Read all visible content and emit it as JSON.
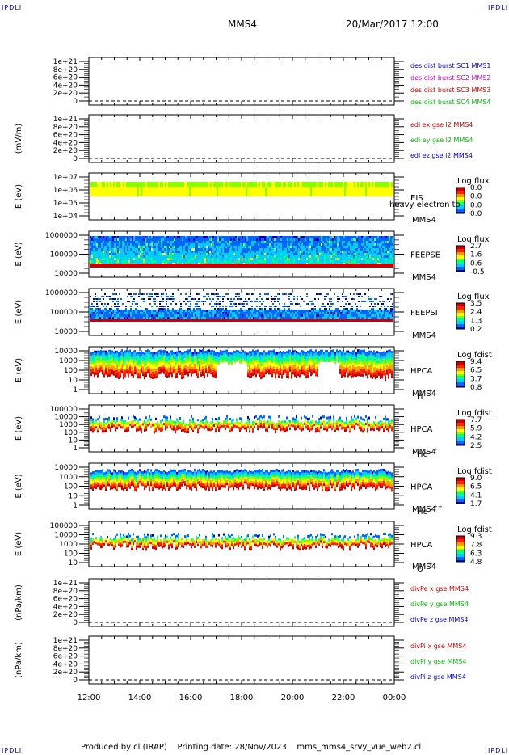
{
  "corner_label": "IPDLI",
  "header": {
    "mission": "MMS4",
    "datetime": "20/Mar/2017 12:00"
  },
  "footer": {
    "produced_by": "Produced by cl (IRAP)",
    "printing_date": "Printing date: 28/Nov/2023",
    "script_name": "mms_mms4_srvy_vue_web2.cl"
  },
  "time_axis": {
    "ticks": [
      "12:00",
      "14:00",
      "16:00",
      "18:00",
      "20:00",
      "22:00",
      "00:00"
    ]
  },
  "panels": [
    {
      "id": "dist",
      "ylabel": "",
      "ytick_labels": [
        "1e+21",
        "8e+20",
        "6e+20",
        "4e+20",
        "2e+20",
        "0"
      ],
      "legend": [
        {
          "text": "des dist burst SC1 MMS1",
          "color": "#0000cc"
        },
        {
          "text": "des dist burst SC2 MMS2",
          "color": "#cc00cc"
        },
        {
          "text": "des dist burst SC3 MMS3",
          "color": "#cc0000"
        },
        {
          "text": "des dist burst SC4 MMS4",
          "color": "#00bb00"
        }
      ]
    },
    {
      "id": "edi",
      "ylabel": "(mV/m)",
      "ytick_labels": [
        "1e+21",
        "8e+20",
        "6e+20",
        "4e+20",
        "2e+20",
        "0"
      ],
      "legend": [
        {
          "text": "edi ex gse l2 MMS4",
          "color": "#cc0000"
        },
        {
          "text": "edi ey gse l2 MMS4",
          "color": "#00bb00"
        },
        {
          "text": "edi ez gse l2 MMS4",
          "color": "#0000cc"
        }
      ]
    },
    {
      "id": "eis",
      "ylabel": "E (eV)",
      "ytick_labels": [
        "1e+07",
        "1e+06",
        "1e+05",
        "1e+04"
      ],
      "name1": "EIS",
      "name2": "MMS4",
      "overlay_text": "heavy electron to",
      "colorbar": {
        "title": "Log flux",
        "labels": [
          "0.0",
          "0.0",
          "0.0",
          "0.0"
        ]
      }
    },
    {
      "id": "feepse",
      "ylabel": "E (eV)",
      "ytick_labels": [
        "1000000",
        "100000",
        "10000"
      ],
      "name1": "FEEPSE",
      "name2": "MMS4",
      "colorbar": {
        "title": "Log flux",
        "labels": [
          "2.7",
          "1.6",
          "0.6",
          "-0.5"
        ]
      }
    },
    {
      "id": "feepsi",
      "ylabel": "E (eV)",
      "ytick_labels": [
        "1000000",
        "100000",
        "10000"
      ],
      "name1": "FEEPSI",
      "name2": "MMS4",
      "colorbar": {
        "title": "Log flux",
        "labels": [
          "3.5",
          "2.4",
          "1.3",
          "0.2"
        ]
      }
    },
    {
      "id": "hpca_h",
      "ylabel": "E (eV)",
      "ytick_labels": [
        "10000",
        "1000",
        "100",
        "10",
        "1"
      ],
      "name1": "HPCA",
      "name2": "MMS4",
      "species": "H",
      "species_sup": "+",
      "colorbar": {
        "title": "Log fdist",
        "labels": [
          "9.4",
          "6.5",
          "3.7",
          "0.8"
        ]
      }
    },
    {
      "id": "hpca_he",
      "ylabel": "E (eV)",
      "ytick_labels": [
        "100000",
        "10000",
        "1000",
        "100",
        "10",
        "1"
      ],
      "name1": "HPCA",
      "name2": "MMS4",
      "species": "He",
      "species_sup": "+",
      "colorbar": {
        "title": "Log fdist",
        "labels": [
          "7.7",
          "5.9",
          "4.2",
          "2.5"
        ]
      }
    },
    {
      "id": "hpca_hepp",
      "ylabel": "E (eV)",
      "ytick_labels": [
        "10000",
        "1000",
        "100",
        "10",
        "1"
      ],
      "name1": "HPCA",
      "name2": "MMS4",
      "species": "He",
      "species_sup": "++",
      "colorbar": {
        "title": "Log fdist",
        "labels": [
          "9.0",
          "6.5",
          "4.1",
          "1.7"
        ]
      }
    },
    {
      "id": "hpca_o",
      "ylabel": "E (eV)",
      "ytick_labels": [
        "100000",
        "10000",
        "1000",
        "100",
        "10"
      ],
      "name1": "HPCA",
      "name2": "MMS4",
      "species": "O",
      "species_sup": "+",
      "colorbar": {
        "title": "Log fdist",
        "labels": [
          "9.3",
          "7.8",
          "6.3",
          "4.8"
        ]
      }
    },
    {
      "id": "divpe",
      "ylabel": "(nPa/km)",
      "ytick_labels": [
        "1e+21",
        "8e+20",
        "6e+20",
        "4e+20",
        "2e+20",
        "0"
      ],
      "legend": [
        {
          "text": "divPe x gse MMS4",
          "color": "#cc0000"
        },
        {
          "text": "divPe y gse MMS4",
          "color": "#00bb00"
        },
        {
          "text": "divPe z gse MMS4",
          "color": "#0000cc"
        }
      ]
    },
    {
      "id": "divpi",
      "ylabel": "(nPa/km)",
      "ytick_labels": [
        "1e+21",
        "8e+20",
        "6e+20",
        "4e+20",
        "2e+20",
        "0"
      ],
      "legend": [
        {
          "text": "divPi x gse MMS4",
          "color": "#cc0000"
        },
        {
          "text": "divPi y gse MMS4",
          "color": "#00bb00"
        },
        {
          "text": "divPi z gse MMS4",
          "color": "#0000cc"
        }
      ]
    }
  ],
  "chart_data": {
    "type": "heatmap",
    "x": [
      "12:00",
      "14:00",
      "16:00",
      "18:00",
      "20:00",
      "22:00",
      "00:00"
    ],
    "colorscale": [
      "#0000aa",
      "#0066ff",
      "#00ccff",
      "#00ff88",
      "#88ff00",
      "#ffff00",
      "#ff9900",
      "#ff2200",
      "#cc0000"
    ],
    "line_panels_ylim": [
      0,
      1e+21
    ],
    "spectrogram_ranges_eV": {
      "eis": [
        10000.0,
        10000000.0
      ],
      "feepse": [
        10000.0,
        1000000.0
      ],
      "feepsi": [
        10000.0,
        1000000.0
      ],
      "hpca_h": [
        1,
        10000.0
      ],
      "hpca_he": [
        1,
        100000.0
      ],
      "hpca_hepp": [
        1,
        10000.0
      ],
      "hpca_o": [
        10,
        100000.0
      ]
    }
  }
}
